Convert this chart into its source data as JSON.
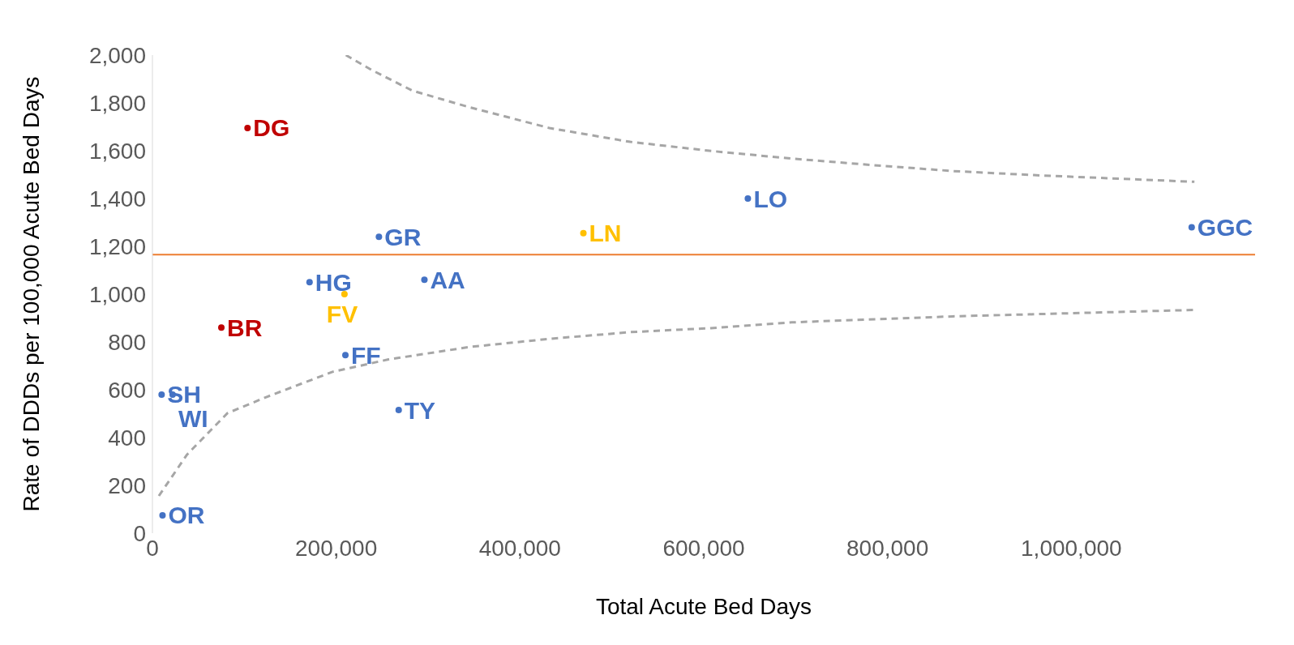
{
  "chart_data": {
    "type": "scatter",
    "xlabel": "Total Acute Bed Days",
    "ylabel": "Rate of DDDs per 100,000 Acute Bed Days",
    "xlim": [
      0,
      1200000
    ],
    "xticks": [
      0,
      {
        "value": 200000,
        "label": "200,000"
      },
      {
        "value": 400000,
        "label": "400,000"
      },
      {
        "value": 600000,
        "label": "600,000"
      },
      {
        "value": 800000,
        "label": "800,000"
      },
      {
        "value": 1000000,
        "label": "1,000,000"
      }
    ],
    "ylim": [
      0,
      2000
    ],
    "yticks": [
      0,
      200,
      400,
      600,
      800,
      {
        "value": 1000,
        "label": "1,000"
      },
      {
        "value": 1200,
        "label": "1,200"
      },
      {
        "value": 1400,
        "label": "1,400"
      },
      {
        "value": 1600,
        "label": "1,600"
      },
      {
        "value": 1800,
        "label": "1,800"
      },
      {
        "value": 2000,
        "label": "2,000"
      }
    ],
    "grid": false,
    "marker": "circle",
    "ref_lines": [
      {
        "axis": "y",
        "value": 1165,
        "color": "#ed7d31"
      }
    ],
    "series": [
      {
        "name": "DG",
        "color": "#c00000",
        "x": [
          103500
        ],
        "values": [
          1695
        ]
      },
      {
        "name": "LO",
        "color": "#4472c4",
        "x": [
          648000
        ],
        "values": [
          1400
        ]
      },
      {
        "name": "GR",
        "color": "#4472c4",
        "x": [
          246500
        ],
        "values": [
          1240
        ]
      },
      {
        "name": "LN",
        "color": "#ffc000",
        "x": [
          469000
        ],
        "values": [
          1255
        ]
      },
      {
        "name": "GGC",
        "color": "#4472c4",
        "x": [
          1131000
        ],
        "values": [
          1280
        ]
      },
      {
        "name": "HG",
        "color": "#4472c4",
        "x": [
          171000
        ],
        "values": [
          1050
        ]
      },
      {
        "name": "FV",
        "color": "#ffc000",
        "x": [
          209000
        ],
        "values": [
          1000
        ]
      },
      {
        "name": "AA",
        "color": "#4472c4",
        "x": [
          296000
        ],
        "values": [
          1060
        ]
      },
      {
        "name": "BR",
        "color": "#c00000",
        "x": [
          75000
        ],
        "values": [
          860
        ]
      },
      {
        "name": "FF",
        "color": "#4472c4",
        "x": [
          210000
        ],
        "values": [
          745
        ]
      },
      {
        "name": "SH",
        "color": "#4472c4",
        "x": [
          10000
        ],
        "values": [
          580
        ]
      },
      {
        "name": "WI",
        "color": "#4472c4",
        "x": [
          22000
        ],
        "values": [
          580
        ]
      },
      {
        "name": "TY",
        "color": "#4472c4",
        "x": [
          268000
        ],
        "values": [
          515
        ]
      },
      {
        "name": "OR",
        "color": "#4472c4",
        "x": [
          11000
        ],
        "values": [
          75
        ]
      },
      {
        "type": "line",
        "marker": "none",
        "line_style": "dashed",
        "color": "#a6a6a6",
        "x": [
          210500,
          239000,
          283000,
          345000,
          432000,
          520000,
          608000,
          696000,
          783000,
          871000,
          959000,
          1134000
        ],
        "values": [
          2000,
          1937,
          1851,
          1782,
          1695,
          1637,
          1599,
          1567,
          1540,
          1515,
          1498,
          1470
        ]
      },
      {
        "type": "line",
        "marker": "none",
        "line_style": "dashed",
        "color": "#a6a6a6",
        "x": [
          7000,
          37700,
          81600,
          125000,
          196000,
          257000,
          345000,
          432000,
          520000,
          608000,
          696000,
          871000,
          1134000
        ],
        "values": [
          156,
          329,
          502,
          571,
          675,
          727,
          779,
          813,
          841,
          858,
          882,
          907,
          934
        ]
      }
    ]
  }
}
